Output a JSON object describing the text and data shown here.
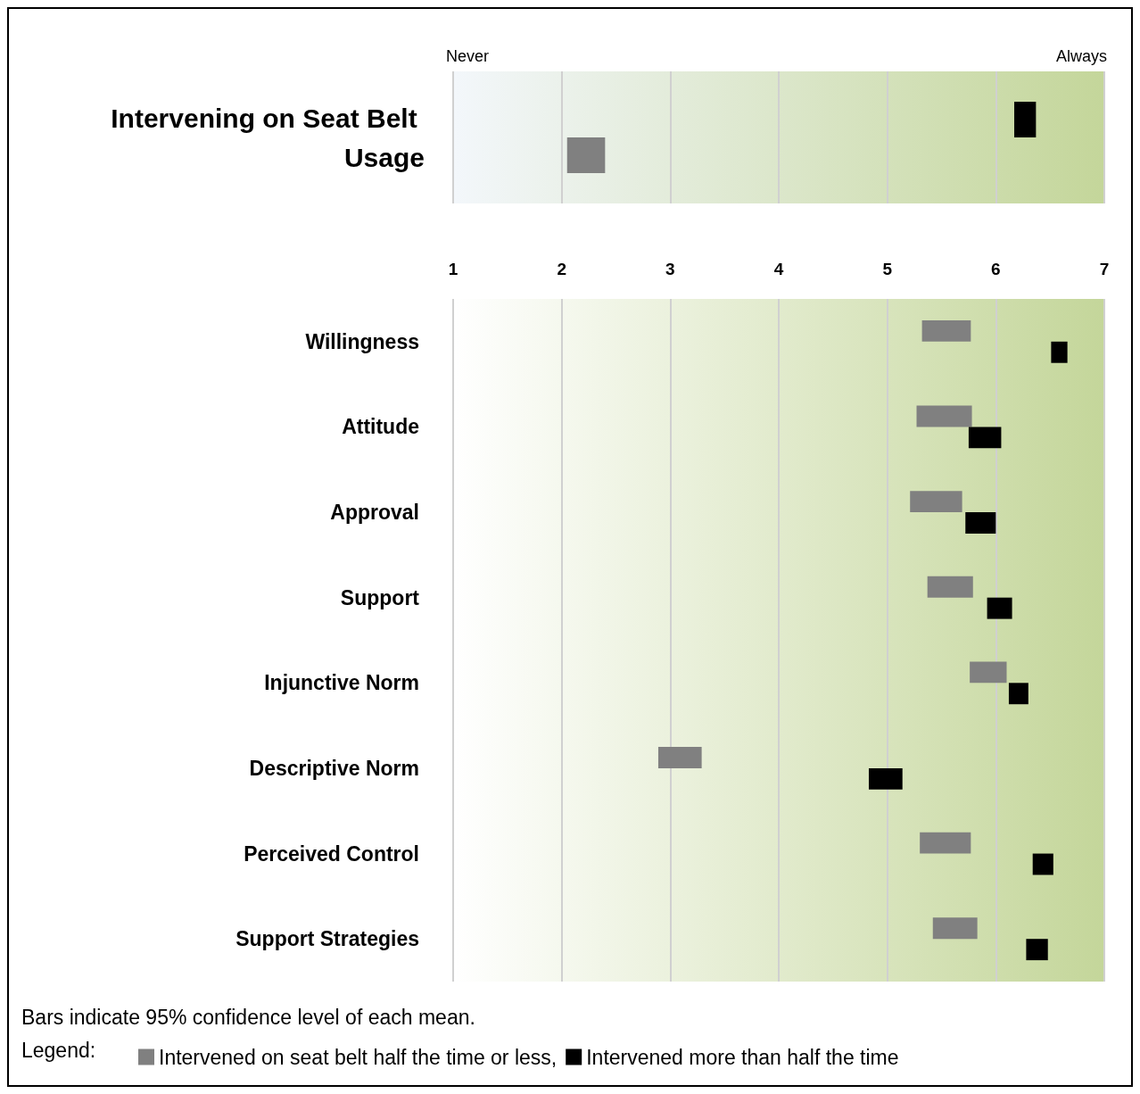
{
  "chart_data": [
    {
      "type": "bar",
      "orientation": "horizontal",
      "categories": [
        "Intervening on Seat Belt Usage"
      ],
      "xlim": [
        1,
        7
      ],
      "xticks": [
        1,
        2,
        3,
        4,
        5,
        6,
        7
      ],
      "tick_labels": "y",
      "grid": "x",
      "annotations": [
        "Never",
        "Always"
      ],
      "series": [
        {
          "color": "#000000",
          "base": [
            6.17
          ],
          "values": [
            0.2
          ]
        },
        {
          "color": "#808080",
          "base": [
            2.05
          ],
          "values": [
            0.35
          ]
        }
      ]
    },
    {
      "type": "bar",
      "orientation": "horizontal",
      "categories": [
        "Willingness",
        "Attitude",
        "Approval",
        "Support",
        "Injunctive Norm",
        "Descriptive Norm",
        "Perceived Control",
        "Support Strategies"
      ],
      "xlim": [
        1,
        7
      ],
      "xticks": [
        1,
        2,
        3,
        4,
        5,
        6,
        7
      ],
      "grid": "x",
      "legend": "bottom",
      "legend_title": "Legend:",
      "annotations": [
        "Bars indicate 95% confidence level of each mean."
      ],
      "series": [
        {
          "name": "Intervened on seat belt half the time or less,",
          "color": "#808080",
          "base": [
            5.32,
            5.27,
            5.21,
            5.37,
            5.76,
            2.89,
            5.3,
            5.42
          ],
          "values": [
            0.45,
            0.51,
            0.48,
            0.42,
            0.34,
            0.4,
            0.47,
            0.41
          ]
        },
        {
          "name": "Intervened more than half the time",
          "color": "#000000",
          "base": [
            6.51,
            5.75,
            5.72,
            5.92,
            6.12,
            4.83,
            6.34,
            6.28
          ],
          "values": [
            0.15,
            0.3,
            0.28,
            0.23,
            0.18,
            0.31,
            0.19,
            0.2
          ]
        }
      ]
    }
  ]
}
